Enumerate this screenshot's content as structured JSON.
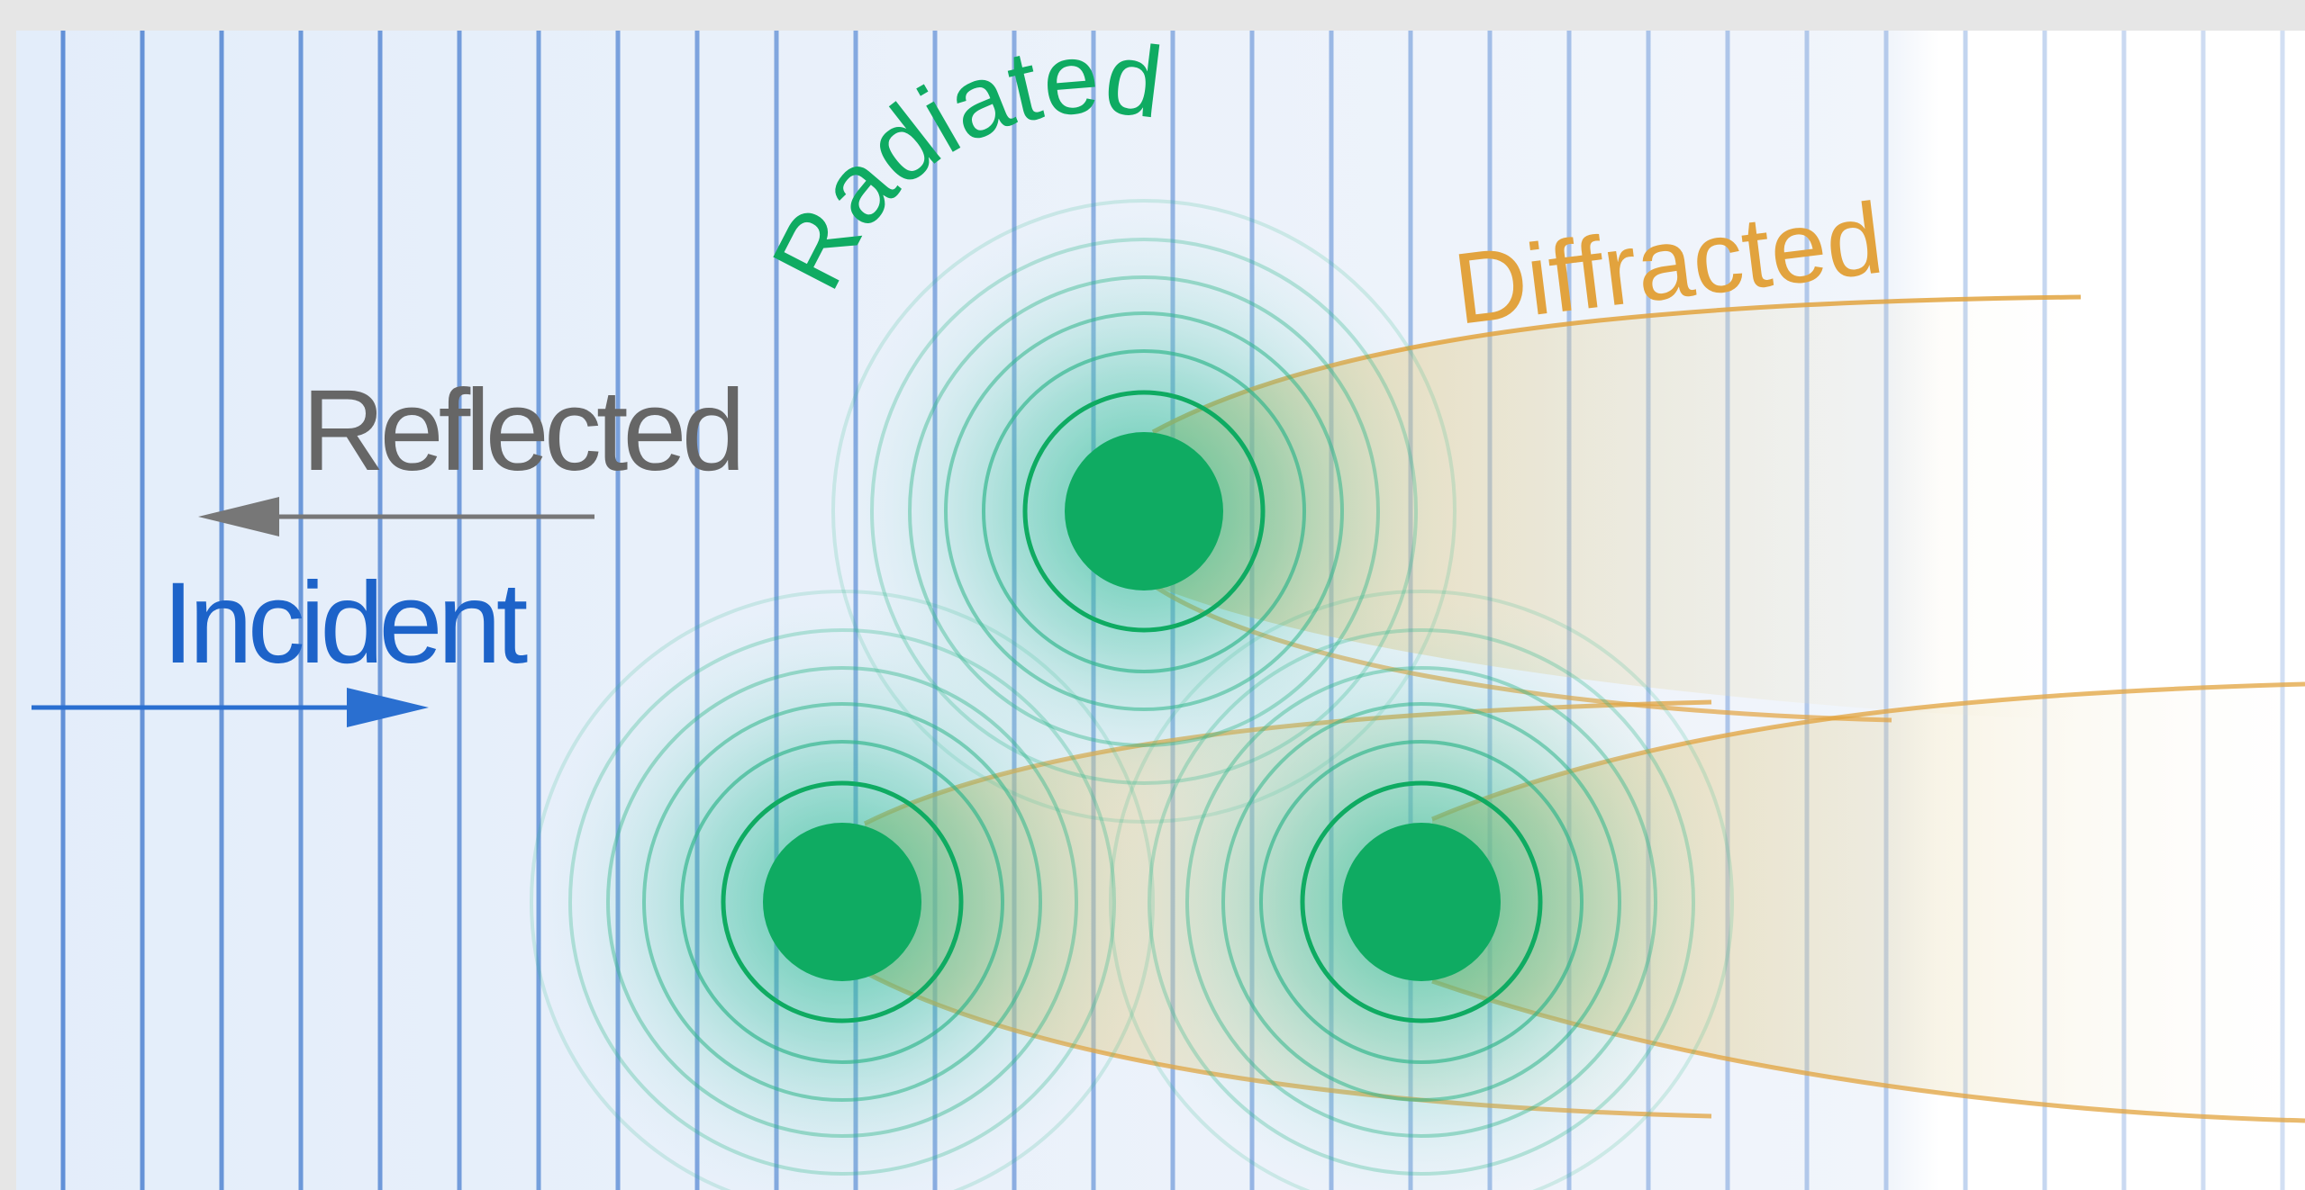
{
  "labels": {
    "radiated": "Radiated",
    "diffracted": "Diffracted",
    "reflected": "Reflected",
    "incident": "Incident"
  },
  "colors": {
    "frame_background": "#e6e6e6",
    "wavefront_line": "#4a7fd0",
    "radiated_green": "#0fab62",
    "diffracted_orange": "#e2a33e",
    "reflected_gray": "#666666",
    "incident_blue": "#1d63c9"
  },
  "scatterers": [
    {
      "name": "top-scatterer"
    },
    {
      "name": "bottom-left-scatterer"
    },
    {
      "name": "bottom-right-scatterer"
    }
  ],
  "icons": {
    "reflected_arrow": "arrow-left-icon",
    "incident_arrow": "arrow-right-icon"
  }
}
